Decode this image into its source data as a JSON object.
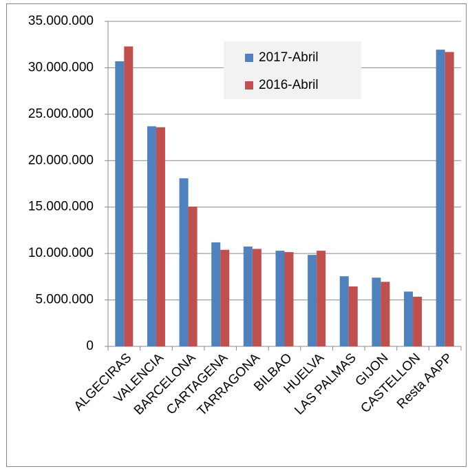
{
  "chart_data": {
    "type": "bar",
    "categories": [
      "ALGECIRAS",
      "VALENCIA",
      "BARCELONA",
      "CARTAGENA",
      "TARRAGONA",
      "BILBAO",
      "HUELVA",
      "LAS PALMAS",
      "GIJON",
      "CASTELLON",
      "Resta AAPP"
    ],
    "series": [
      {
        "name": "2017-Abril",
        "color": "#4f81bd",
        "values": [
          30700000,
          23700000,
          18100000,
          11200000,
          10750000,
          10300000,
          9850000,
          7550000,
          7400000,
          5900000,
          31950000
        ]
      },
      {
        "name": "2016-Abril",
        "color": "#c0504d",
        "values": [
          32300000,
          23600000,
          15050000,
          10400000,
          10500000,
          10150000,
          10300000,
          6450000,
          6950000,
          5350000,
          31700000
        ]
      }
    ],
    "ylim": [
      0,
      35000000
    ],
    "yticks": [
      0,
      {
        "value": 5000000,
        "label": "5.000.000"
      },
      {
        "value": 10000000,
        "label": "10.000.000"
      },
      {
        "value": 15000000,
        "label": "15.000.000"
      },
      {
        "value": 20000000,
        "label": "20.000.000"
      },
      {
        "value": 25000000,
        "label": "25.000.000"
      },
      {
        "value": 30000000,
        "label": "30.000.000"
      },
      {
        "value": 35000000,
        "label": "35.000.000"
      }
    ],
    "grid": true,
    "legend": "top"
  }
}
